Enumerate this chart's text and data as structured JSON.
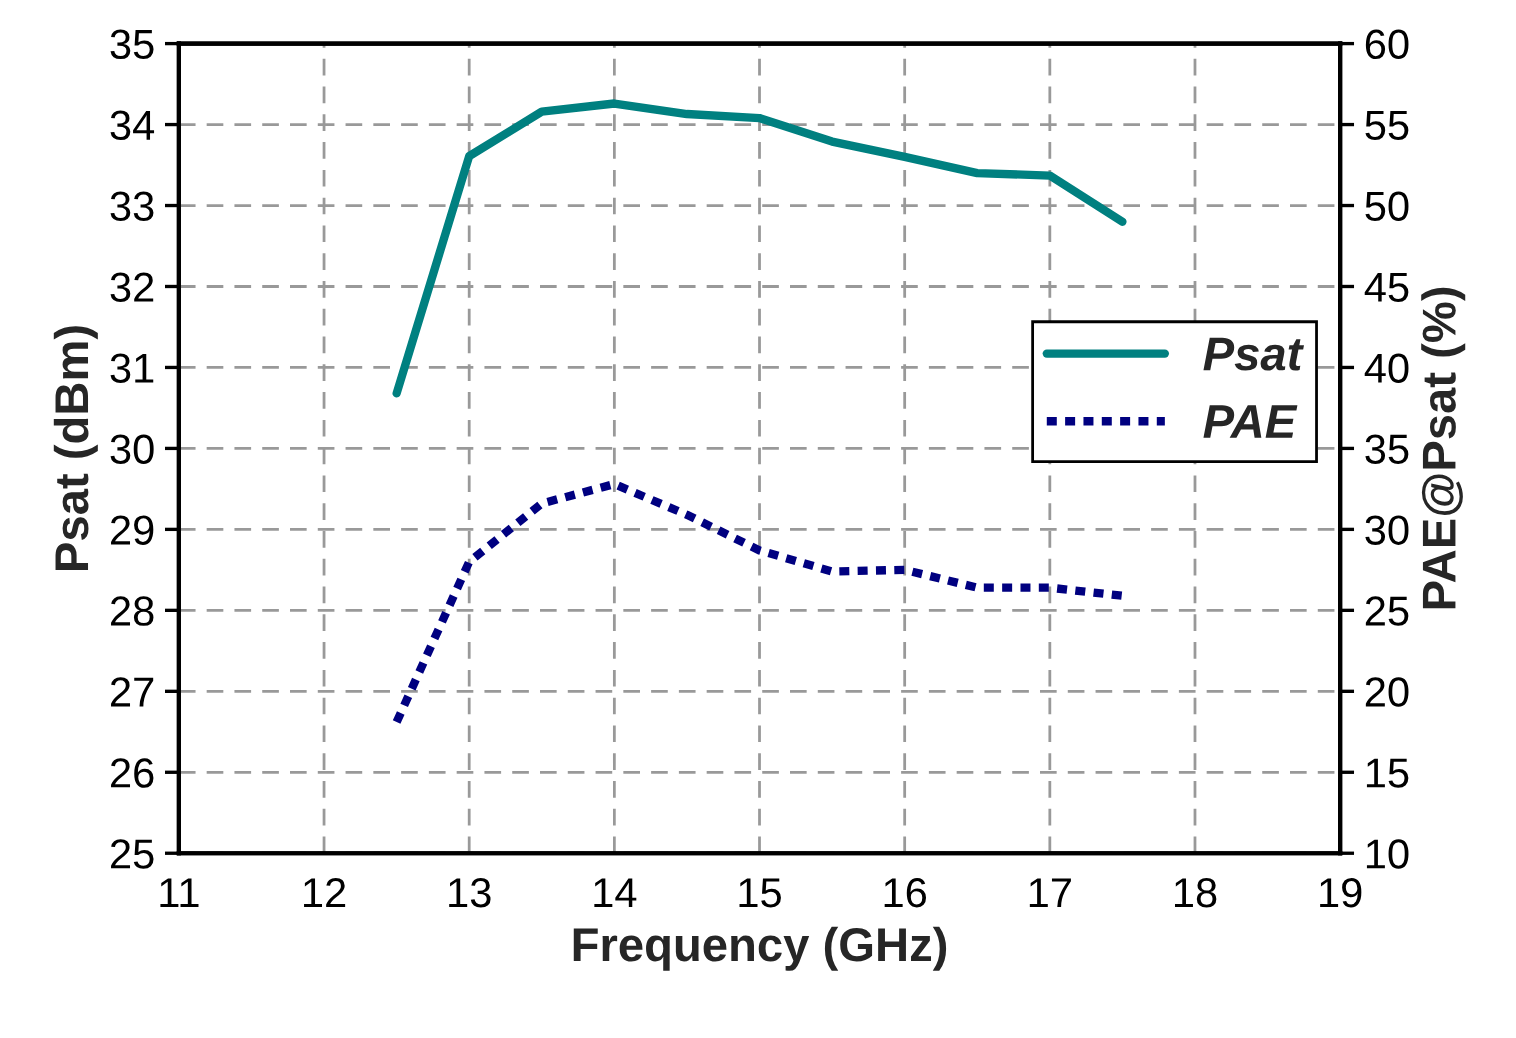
{
  "chart_data": {
    "type": "line",
    "xlabel": "Frequency (GHz)",
    "ylabel": "Psat (dBm)",
    "y2label": "PAE@Psat (%)",
    "x": [
      12.5,
      13,
      13.5,
      14,
      14.5,
      15,
      15.5,
      16,
      16.5,
      17,
      17.5
    ],
    "series": [
      {
        "name": "Psat",
        "color": "#008080",
        "line_style": "solid",
        "values": [
          30.68,
          33.61,
          34.16,
          34.26,
          34.13,
          34.08,
          33.79,
          33.6,
          33.4,
          33.37,
          32.8
        ]
      },
      {
        "name": "PAE",
        "color": "#000080",
        "line_style": "dotted",
        "axis": "y2",
        "values": [
          18.1,
          28.0,
          31.6,
          32.8,
          30.9,
          28.7,
          27.4,
          27.5,
          26.4,
          26.4,
          25.9
        ]
      }
    ],
    "xlim": [
      11,
      19
    ],
    "xticks": [
      11,
      12,
      13,
      14,
      15,
      16,
      17,
      18,
      19
    ],
    "ylim": [
      25,
      35
    ],
    "yticks": [
      25,
      26,
      27,
      28,
      29,
      30,
      31,
      32,
      33,
      34,
      35
    ],
    "y2lim": [
      10,
      60
    ],
    "y2ticks": [
      10,
      15,
      20,
      25,
      30,
      35,
      40,
      45,
      50,
      55,
      60
    ],
    "grid": true,
    "legend": "right",
    "marker": "none"
  }
}
